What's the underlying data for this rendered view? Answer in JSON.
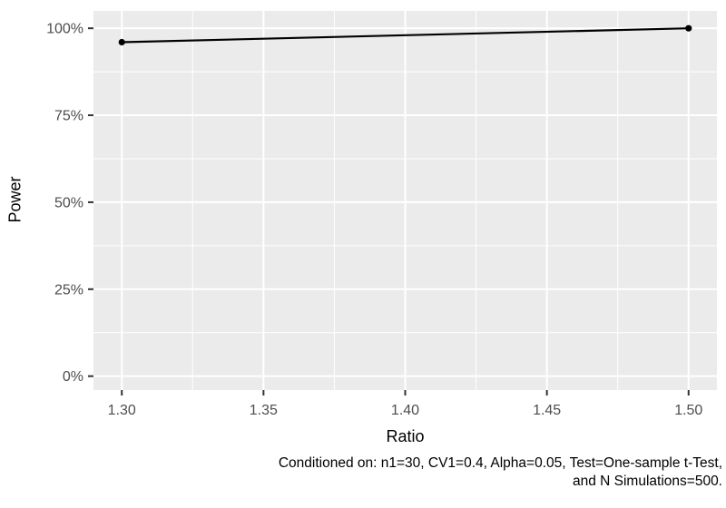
{
  "chart_data": {
    "type": "line",
    "title": "",
    "xlabel": "Ratio",
    "ylabel": "Power",
    "x": [
      1.3,
      1.5
    ],
    "series": [
      {
        "name": "Power",
        "values": [
          96,
          100
        ]
      }
    ],
    "x_ticks": {
      "values": [
        1.3,
        1.35,
        1.4,
        1.45,
        1.5
      ],
      "labels": [
        "1.30",
        "1.35",
        "1.40",
        "1.45",
        "1.50"
      ]
    },
    "y_ticks": {
      "values": [
        0,
        25,
        50,
        75,
        100
      ],
      "labels": [
        "0%",
        "25%",
        "50%",
        "75%",
        "100%"
      ]
    },
    "xlim": [
      1.29,
      1.51
    ],
    "ylim": [
      -4,
      105
    ],
    "grid": {
      "major": true,
      "minor": true
    },
    "legend": "none",
    "caption_lines": [
      "Conditioned on: n1=30, CV1=0.4, Alpha=0.05, Test=One-sample t-Test,",
      "and N Simulations=500."
    ],
    "colors": {
      "panel_bg": "#ebebeb",
      "grid": "#ffffff",
      "line": "#000000",
      "point": "#000000",
      "tick_mark": "#333333",
      "tick_label": "#4d4d4d",
      "axis_title": "#000000",
      "caption": "#000000"
    }
  }
}
